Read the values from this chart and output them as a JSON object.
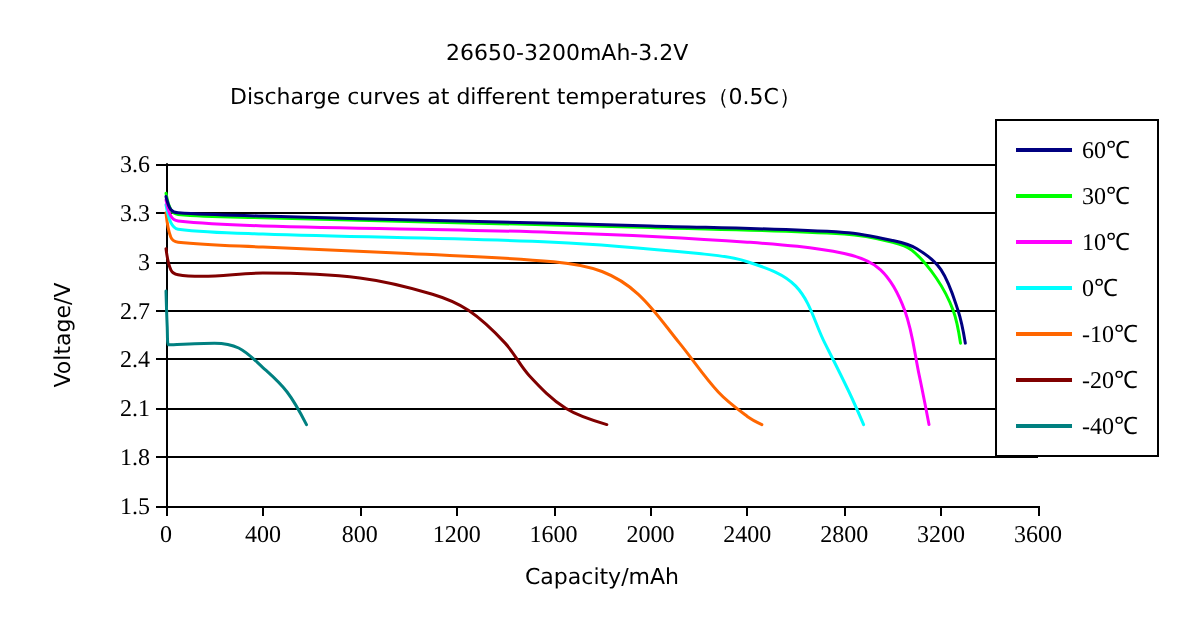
{
  "chart_data": {
    "type": "line",
    "title": "26650-3200mAh-3.2V",
    "subtitle": "Discharge curves at different temperatures（0.5C）",
    "xlabel": "Capacity/mAh",
    "ylabel": "Voltage/V",
    "xlim": [
      0,
      3600
    ],
    "xticks": [
      0,
      400,
      800,
      1200,
      1600,
      2000,
      2400,
      2800,
      3200,
      3600
    ],
    "ylim": [
      1.5,
      3.6
    ],
    "yticks": [
      1.5,
      1.8,
      2.1,
      2.4,
      2.7,
      3,
      3.3,
      3.6
    ],
    "grid": "y",
    "legend": "right",
    "marker": "none",
    "line_style": "solid",
    "series": [
      {
        "name": "60℃",
        "color": "#000080",
        "x": [
          0,
          20,
          50,
          400,
          1200,
          2000,
          2800,
          3000,
          3100,
          3200,
          3270,
          3300
        ],
        "values": [
          3.4,
          3.32,
          3.3,
          3.28,
          3.25,
          3.22,
          3.18,
          3.13,
          3.08,
          2.95,
          2.7,
          2.5
        ]
      },
      {
        "name": "30℃",
        "color": "#00ff00",
        "x": [
          0,
          20,
          50,
          400,
          1200,
          2000,
          2800,
          3000,
          3080,
          3180,
          3250,
          3280
        ],
        "values": [
          3.42,
          3.32,
          3.29,
          3.27,
          3.24,
          3.21,
          3.17,
          3.12,
          3.07,
          2.9,
          2.7,
          2.5
        ]
      },
      {
        "name": "10℃",
        "color": "#ff00ff",
        "x": [
          0,
          20,
          50,
          400,
          1600,
          2400,
          2800,
          2950,
          3050,
          3110,
          3150
        ],
        "values": [
          3.38,
          3.28,
          3.25,
          3.22,
          3.18,
          3.12,
          3.05,
          2.95,
          2.7,
          2.3,
          2
        ]
      },
      {
        "name": "0℃",
        "color": "#00ffff",
        "x": [
          0,
          20,
          50,
          400,
          1600,
          2200,
          2400,
          2600,
          2720,
          2820,
          2880
        ],
        "values": [
          3.35,
          3.24,
          3.2,
          3.17,
          3.12,
          3.05,
          3,
          2.85,
          2.5,
          2.2,
          2
        ]
      },
      {
        "name": "-10℃",
        "color": "#ff6600",
        "x": [
          0,
          20,
          50,
          400,
          1000,
          1600,
          1800,
          1950,
          2120,
          2280,
          2400,
          2460
        ],
        "values": [
          3.3,
          3.15,
          3.12,
          3.09,
          3.05,
          3,
          2.94,
          2.8,
          2.5,
          2.2,
          2.05,
          2
        ]
      },
      {
        "name": "-20℃",
        "color": "#800000",
        "x": [
          0,
          20,
          50,
          150,
          400,
          800,
          1100,
          1250,
          1400,
          1500,
          1650,
          1820
        ],
        "values": [
          3.08,
          2.95,
          2.92,
          2.91,
          2.93,
          2.9,
          2.8,
          2.7,
          2.5,
          2.3,
          2.1,
          2
        ]
      },
      {
        "name": "-40℃",
        "color": "#008080",
        "x": [
          0,
          5,
          10,
          200,
          300,
          400,
          500,
          580
        ],
        "values": [
          2.82,
          2.6,
          2.49,
          2.5,
          2.47,
          2.35,
          2.2,
          2
        ]
      }
    ]
  }
}
